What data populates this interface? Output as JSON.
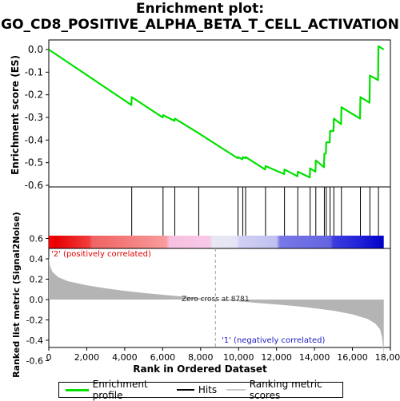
{
  "title_line1": "Enrichment plot:",
  "title_line2": "GO_CD8_POSITIVE_ALPHA_BETA_T_CELL_ACTIVATION",
  "colors": {
    "es_line": "#00e000",
    "hits": "#000000",
    "metric_fill": "#b4b4b4",
    "pos_label": "#e00000",
    "neg_label": "#2020c0",
    "zero_cross_line": "#a0a0a0"
  },
  "chart_data": [
    {
      "type": "line",
      "name": "enrichment-score-panel",
      "ylabel": "Enrichment score (ES)",
      "ylim": [
        -0.6,
        0.0
      ],
      "yticks": [
        0.0,
        -0.1,
        -0.2,
        -0.3,
        -0.4,
        -0.5,
        -0.6
      ],
      "ytick_labels": [
        "0.0",
        "-0.1",
        "-0.2",
        "-0.3",
        "-0.4",
        "-0.5",
        "-0.6"
      ],
      "xlim": [
        0,
        18000
      ],
      "series": [
        {
          "name": "Enrichment profile",
          "points": [
            [
              0,
              0.0
            ],
            [
              4350,
              -0.245
            ],
            [
              4370,
              -0.21
            ],
            [
              6000,
              -0.3
            ],
            [
              6020,
              -0.29
            ],
            [
              6620,
              -0.315
            ],
            [
              6640,
              -0.305
            ],
            [
              7900,
              -0.37
            ],
            [
              9950,
              -0.48
            ],
            [
              9970,
              -0.475
            ],
            [
              10200,
              -0.485
            ],
            [
              10220,
              -0.475
            ],
            [
              10350,
              -0.48
            ],
            [
              10370,
              -0.475
            ],
            [
              11400,
              -0.53
            ],
            [
              11420,
              -0.515
            ],
            [
              12400,
              -0.55
            ],
            [
              12420,
              -0.53
            ],
            [
              13100,
              -0.56
            ],
            [
              13120,
              -0.54
            ],
            [
              13750,
              -0.565
            ],
            [
              13770,
              -0.525
            ],
            [
              14050,
              -0.54
            ],
            [
              14070,
              -0.49
            ],
            [
              14500,
              -0.52
            ],
            [
              14520,
              -0.46
            ],
            [
              14600,
              -0.46
            ],
            [
              14620,
              -0.41
            ],
            [
              14800,
              -0.41
            ],
            [
              14820,
              -0.36
            ],
            [
              15000,
              -0.36
            ],
            [
              15020,
              -0.305
            ],
            [
              15400,
              -0.33
            ],
            [
              15420,
              -0.255
            ],
            [
              16400,
              -0.305
            ],
            [
              16420,
              -0.21
            ],
            [
              16900,
              -0.235
            ],
            [
              16920,
              -0.115
            ],
            [
              17350,
              -0.135
            ],
            [
              17370,
              0.015
            ],
            [
              17650,
              0.0
            ]
          ]
        }
      ]
    },
    {
      "type": "scatter",
      "name": "hits-panel",
      "series": [
        {
          "name": "Hits",
          "x": [
            4370,
            6020,
            6640,
            7900,
            9970,
            10220,
            10370,
            11420,
            12420,
            13120,
            13770,
            14070,
            14520,
            14620,
            14820,
            15020,
            15420,
            16420,
            16920,
            17370
          ]
        }
      ]
    },
    {
      "type": "area",
      "name": "ranked-metric-panel",
      "xlabel": "Rank in Ordered Dataset",
      "ylabel": "Ranked list metric (Signal2Noise)",
      "xlim": [
        0,
        18000
      ],
      "ylim": [
        -0.7,
        0.7
      ],
      "xticks": [
        0,
        2000,
        4000,
        6000,
        8000,
        10000,
        12000,
        14000,
        16000,
        18000
      ],
      "xtick_labels": [
        "0",
        "2,000",
        "4,000",
        "6,000",
        "8,000",
        "10,000",
        "12,000",
        "14,000",
        "16,000",
        "18,000"
      ],
      "yticks": [
        0.6,
        0.4,
        0.2,
        0.0,
        -0.2,
        -0.4,
        -0.6
      ],
      "ytick_labels": [
        "0.6",
        "0.4",
        "0.2",
        "0.0",
        "-0.2",
        "-0.4",
        "-0.6"
      ],
      "series": [
        {
          "name": "Ranking metric scores",
          "points": [
            [
              0,
              0.42
            ],
            [
              60,
              0.33
            ],
            [
              200,
              0.27
            ],
            [
              500,
              0.22
            ],
            [
              1000,
              0.18
            ],
            [
              2000,
              0.14
            ],
            [
              3000,
              0.11
            ],
            [
              4000,
              0.085
            ],
            [
              5000,
              0.065
            ],
            [
              6000,
              0.047
            ],
            [
              7000,
              0.03
            ],
            [
              8000,
              0.013
            ],
            [
              8781,
              0.0
            ],
            [
              10000,
              -0.018
            ],
            [
              11000,
              -0.033
            ],
            [
              12000,
              -0.048
            ],
            [
              13000,
              -0.065
            ],
            [
              14000,
              -0.085
            ],
            [
              15000,
              -0.11
            ],
            [
              16000,
              -0.145
            ],
            [
              16800,
              -0.19
            ],
            [
              17200,
              -0.235
            ],
            [
              17450,
              -0.29
            ],
            [
              17560,
              -0.37
            ],
            [
              17620,
              -0.48
            ],
            [
              17650,
              -0.65
            ]
          ]
        }
      ],
      "annotations": {
        "zero_cross": "Zero cross at 8781",
        "zero_cross_x": 8781,
        "pos_label": "'2' (positively correlated)",
        "neg_label": "'1' (negatively correlated)"
      }
    }
  ],
  "legend": {
    "enrichment_profile": "Enrichment profile",
    "hits": "Hits",
    "ranking_metric": "Ranking metric scores"
  }
}
